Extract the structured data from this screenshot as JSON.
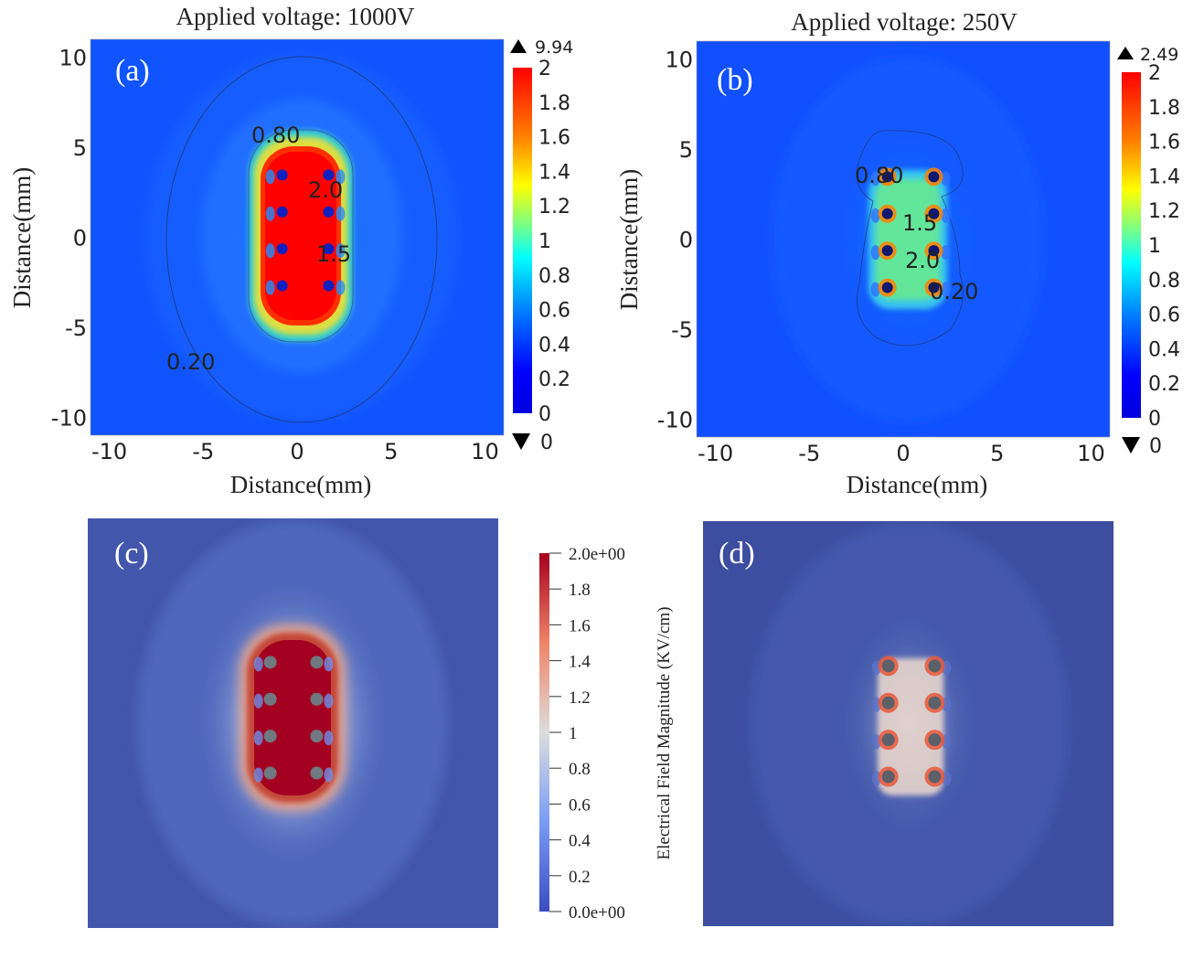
{
  "chart_data": [
    {
      "type": "heatmap",
      "panel_label": "(a)",
      "title": "Applied voltage: 1000V",
      "xlabel": "Distance(mm)",
      "ylabel": "Distance(mm)",
      "xlim": [
        -11,
        11
      ],
      "ylim": [
        -11,
        11
      ],
      "xticks": [
        "-10",
        "-5",
        "0",
        "5",
        "10"
      ],
      "yticks": [
        "10",
        "5",
        "0",
        "-5",
        "-10"
      ],
      "colorbar": {
        "range": [
          0,
          2
        ],
        "ticks": [
          "2",
          "1.8",
          "1.6",
          "1.4",
          "1.2",
          "1",
          "0.8",
          "0.6",
          "0.4",
          "0.2",
          "0"
        ],
        "max_label": "9.94",
        "min_label": "0"
      },
      "contour_labels": [
        "0.80",
        "2.0",
        "1.5",
        "0.20"
      ],
      "electrodes_mm": [
        [
          -1.1,
          3.2
        ],
        [
          1.4,
          3.2
        ],
        [
          -1.1,
          1.2
        ],
        [
          1.4,
          1.2
        ],
        [
          -1.1,
          -0.8
        ],
        [
          1.4,
          -0.8
        ],
        [
          -1.1,
          -2.8
        ],
        [
          1.4,
          -2.8
        ]
      ]
    },
    {
      "type": "heatmap",
      "panel_label": "(b)",
      "title": "Applied voltage: 250V",
      "xlabel": "Distance(mm)",
      "ylabel": "Distance(mm)",
      "xlim": [
        -11,
        11
      ],
      "ylim": [
        -11,
        11
      ],
      "xticks": [
        "-10",
        "-5",
        "0",
        "5",
        "10"
      ],
      "yticks": [
        "10",
        "5",
        "0",
        "-5",
        "-10"
      ],
      "colorbar": {
        "range": [
          0,
          2
        ],
        "ticks": [
          "2",
          "1.8",
          "1.6",
          "1.4",
          "1.2",
          "1",
          "0.8",
          "0.6",
          "0.4",
          "0.2",
          "0"
        ],
        "max_label": "2.49",
        "min_label": "0"
      },
      "contour_labels": [
        "0.80",
        "1.5",
        "2.0",
        "0.20"
      ],
      "electrodes_mm": [
        [
          -1.1,
          3.2
        ],
        [
          1.4,
          3.2
        ],
        [
          -1.1,
          1.2
        ],
        [
          1.4,
          1.2
        ],
        [
          -1.1,
          -0.8
        ],
        [
          1.4,
          -0.8
        ],
        [
          -1.1,
          -2.8
        ],
        [
          1.4,
          -2.8
        ]
      ]
    },
    {
      "type": "heatmap",
      "panel_label": "(c)",
      "colorbar": {
        "range": [
          0,
          2
        ],
        "ticks": [
          "2.0e+00",
          "1.8",
          "1.6",
          "1.4",
          "1.2",
          "1",
          "0.8",
          "0.6",
          "0.4",
          "0.2",
          "0.0e+00"
        ],
        "title": "Electrical Field Magnitude (KV/cm)"
      }
    },
    {
      "type": "heatmap",
      "panel_label": "(d)"
    }
  ],
  "colors": {
    "jet": [
      "#00008f",
      "#0000ff",
      "#0080ff",
      "#00ffff",
      "#80ff80",
      "#ffff00",
      "#ff8000",
      "#ff0000"
    ],
    "coolwarm": [
      "#3b4cc0",
      "#6f92f3",
      "#aac7fd",
      "#dddddd",
      "#f7b89c",
      "#e7755b",
      "#b40426",
      "#8b0012"
    ]
  }
}
